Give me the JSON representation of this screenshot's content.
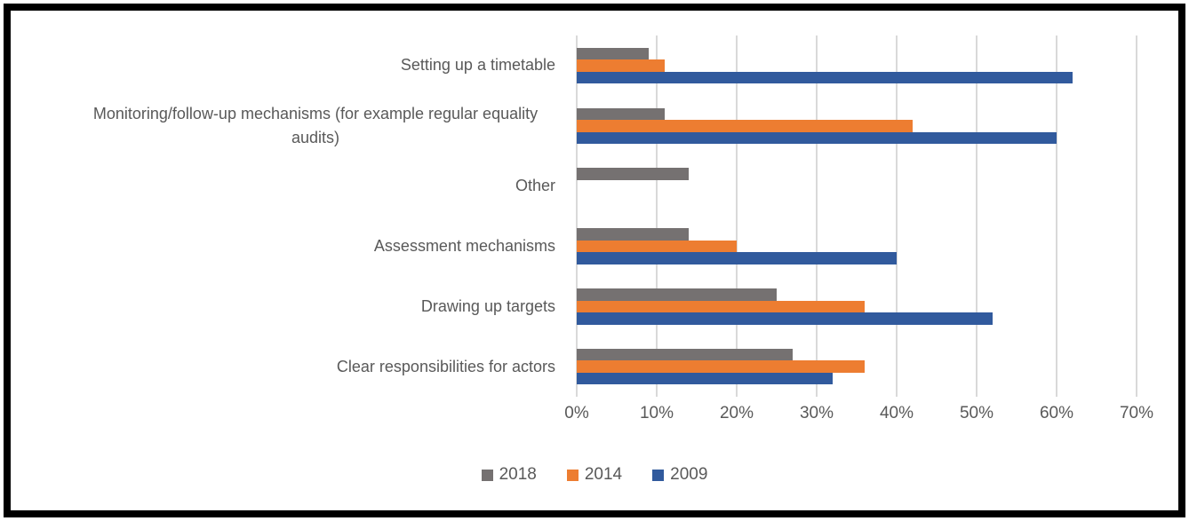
{
  "chart_data": {
    "type": "bar",
    "orientation": "horizontal",
    "title": "",
    "xlabel": "",
    "ylabel": "",
    "categories": [
      "Setting up a timetable",
      "Monitoring/follow-up mechanisms (for example regular equality audits)",
      "Other",
      "Assessment mechanisms",
      "Drawing up targets",
      "Clear responsibilities for actors"
    ],
    "series": [
      {
        "name": "2018",
        "color": "#757171",
        "values": [
          9,
          11,
          14,
          14,
          25,
          27
        ]
      },
      {
        "name": "2014",
        "color": "#ED7D31",
        "values": [
          11,
          42,
          0,
          20,
          36,
          36
        ]
      },
      {
        "name": "2009",
        "color": "#315A9D",
        "values": [
          62,
          60,
          0,
          40,
          52,
          32
        ]
      }
    ],
    "xlim": [
      0,
      70
    ],
    "x_tick_labels": [
      "0%",
      "10%",
      "20%",
      "30%",
      "40%",
      "50%",
      "60%",
      "70%"
    ],
    "grid": "vertical-only",
    "gridline_color": "#D9D9D9",
    "text_color": "#595959",
    "legend_position": "bottom",
    "legend_entries": [
      "2018",
      "2014",
      "2009"
    ]
  }
}
